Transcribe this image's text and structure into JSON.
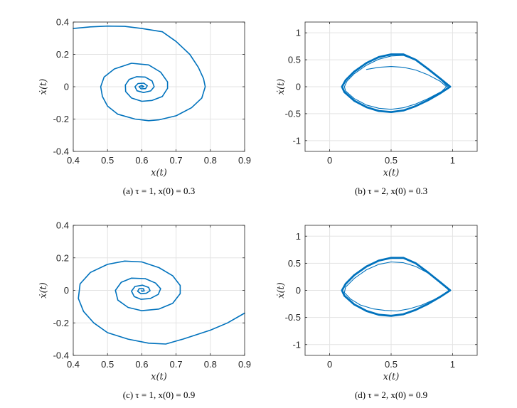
{
  "chart_data": [
    {
      "type": "line",
      "panel": "a",
      "caption": "(a)  τ = 1, x(0) = 0.3",
      "xlabel": "x(t)",
      "ylabel": "ẋ(t)",
      "xlim": [
        0.4,
        0.9
      ],
      "ylim": [
        -0.4,
        0.4
      ],
      "xticks": [
        0.4,
        0.5,
        0.6,
        0.7,
        0.8,
        0.9
      ],
      "xtick_labels": [
        "0.4",
        "0.5",
        "0.6",
        "0.7",
        "0.8",
        "0.9"
      ],
      "yticks": [
        -0.4,
        -0.2,
        0,
        0.2,
        0.4
      ],
      "ytick_labels": [
        "-0.4",
        "-0.2",
        "0",
        "0.2",
        "0.4"
      ],
      "grid": true,
      "color": "#0072BD",
      "series": [
        {
          "name": "trajectory",
          "width": 1.6,
          "points": [
            [
              0.4,
              0.36
            ],
            [
              0.45,
              0.37
            ],
            [
              0.5,
              0.375
            ],
            [
              0.55,
              0.373
            ],
            [
              0.6,
              0.36
            ],
            [
              0.66,
              0.34
            ],
            [
              0.7,
              0.28
            ],
            [
              0.74,
              0.2
            ],
            [
              0.765,
              0.12
            ],
            [
              0.78,
              0.05
            ],
            [
              0.785,
              0
            ],
            [
              0.775,
              -0.07
            ],
            [
              0.745,
              -0.13
            ],
            [
              0.7,
              -0.18
            ],
            [
              0.65,
              -0.205
            ],
            [
              0.62,
              -0.21
            ],
            [
              0.58,
              -0.2
            ],
            [
              0.53,
              -0.17
            ],
            [
              0.5,
              -0.12
            ],
            [
              0.485,
              -0.06
            ],
            [
              0.48,
              0
            ],
            [
              0.49,
              0.06
            ],
            [
              0.52,
              0.11
            ],
            [
              0.57,
              0.145
            ],
            [
              0.62,
              0.135
            ],
            [
              0.655,
              0.09
            ],
            [
              0.675,
              0.03
            ],
            [
              0.675,
              -0.01
            ],
            [
              0.66,
              -0.06
            ],
            [
              0.63,
              -0.085
            ],
            [
              0.6,
              -0.09
            ],
            [
              0.57,
              -0.07
            ],
            [
              0.553,
              -0.03
            ],
            [
              0.552,
              0.01
            ],
            [
              0.563,
              0.045
            ],
            [
              0.585,
              0.062
            ],
            [
              0.61,
              0.06
            ],
            [
              0.63,
              0.035
            ],
            [
              0.636,
              0
            ],
            [
              0.626,
              -0.026
            ],
            [
              0.605,
              -0.036
            ],
            [
              0.586,
              -0.025
            ],
            [
              0.58,
              0
            ],
            [
              0.589,
              0.02
            ],
            [
              0.606,
              0.022
            ],
            [
              0.616,
              0.006
            ],
            [
              0.611,
              -0.012
            ],
            [
              0.598,
              -0.013
            ],
            [
              0.592,
              0
            ],
            [
              0.6,
              0.008
            ],
            [
              0.606,
              0.001
            ],
            [
              0.6,
              -0.004
            ],
            [
              0.6,
              0
            ]
          ]
        }
      ]
    },
    {
      "type": "line",
      "panel": "b",
      "caption": "(b)  τ = 2, x(0) = 0.3",
      "xlabel": "x(t)",
      "ylabel": "ẋ(t)",
      "xlim": [
        -0.2,
        1.2
      ],
      "ylim": [
        -1.2,
        1.2
      ],
      "xticks": [
        0,
        0.5,
        1
      ],
      "xtick_labels": [
        "0",
        "0.5",
        "1"
      ],
      "yticks": [
        -1,
        -0.5,
        0,
        0.5,
        1
      ],
      "ytick_labels": [
        "-1",
        "-0.5",
        "0",
        "0.5",
        "1"
      ],
      "grid": true,
      "color": "#0072BD",
      "series": [
        {
          "name": "transient",
          "width": 1.1,
          "points": [
            [
              0.3,
              0.32
            ],
            [
              0.4,
              0.36
            ],
            [
              0.5,
              0.375
            ],
            [
              0.6,
              0.36
            ],
            [
              0.7,
              0.31
            ],
            [
              0.8,
              0.22
            ],
            [
              0.9,
              0.1
            ],
            [
              0.95,
              0.0
            ],
            [
              0.91,
              -0.09
            ],
            [
              0.8,
              -0.22
            ],
            [
              0.7,
              -0.32
            ],
            [
              0.6,
              -0.39
            ],
            [
              0.5,
              -0.42
            ],
            [
              0.4,
              -0.4
            ],
            [
              0.3,
              -0.34
            ],
            [
              0.2,
              -0.22
            ],
            [
              0.13,
              -0.08
            ],
            [
              0.12,
              0
            ],
            [
              0.14,
              0.1
            ],
            [
              0.2,
              0.24
            ],
            [
              0.3,
              0.4
            ],
            [
              0.4,
              0.51
            ],
            [
              0.5,
              0.57
            ],
            [
              0.6,
              0.58
            ],
            [
              0.7,
              0.49
            ],
            [
              0.8,
              0.32
            ],
            [
              0.9,
              0.14
            ],
            [
              0.96,
              0
            ]
          ]
        },
        {
          "name": "limit-cycle",
          "width": 2.8,
          "points": [
            [
              0.1,
              0
            ],
            [
              0.13,
              0.12
            ],
            [
              0.2,
              0.28
            ],
            [
              0.3,
              0.44
            ],
            [
              0.4,
              0.55
            ],
            [
              0.5,
              0.6
            ],
            [
              0.6,
              0.6
            ],
            [
              0.7,
              0.5
            ],
            [
              0.8,
              0.33
            ],
            [
              0.9,
              0.15
            ],
            [
              0.98,
              0
            ],
            [
              0.9,
              -0.12
            ],
            [
              0.8,
              -0.25
            ],
            [
              0.7,
              -0.36
            ],
            [
              0.6,
              -0.44
            ],
            [
              0.5,
              -0.47
            ],
            [
              0.4,
              -0.45
            ],
            [
              0.3,
              -0.38
            ],
            [
              0.2,
              -0.26
            ],
            [
              0.12,
              -0.1
            ],
            [
              0.1,
              0
            ]
          ]
        }
      ]
    },
    {
      "type": "line",
      "panel": "c",
      "caption": "(c)  τ = 1, x(0) = 0.9",
      "xlabel": "x(t)",
      "ylabel": "ẋ(t)",
      "xlim": [
        0.4,
        0.9
      ],
      "ylim": [
        -0.4,
        0.4
      ],
      "xticks": [
        0.4,
        0.5,
        0.6,
        0.7,
        0.8,
        0.9
      ],
      "xtick_labels": [
        "0.4",
        "0.5",
        "0.6",
        "0.7",
        "0.8",
        "0.9"
      ],
      "yticks": [
        -0.4,
        -0.2,
        0,
        0.2,
        0.4
      ],
      "ytick_labels": [
        "-0.4",
        "-0.2",
        "0",
        "0.2",
        "0.4"
      ],
      "grid": true,
      "color": "#0072BD",
      "series": [
        {
          "name": "trajectory",
          "width": 1.6,
          "points": [
            [
              0.9,
              -0.14
            ],
            [
              0.85,
              -0.2
            ],
            [
              0.8,
              -0.245
            ],
            [
              0.72,
              -0.3
            ],
            [
              0.67,
              -0.33
            ],
            [
              0.62,
              -0.325
            ],
            [
              0.56,
              -0.3
            ],
            [
              0.5,
              -0.26
            ],
            [
              0.46,
              -0.2
            ],
            [
              0.43,
              -0.13
            ],
            [
              0.415,
              -0.05
            ],
            [
              0.42,
              0.04
            ],
            [
              0.45,
              0.11
            ],
            [
              0.5,
              0.16
            ],
            [
              0.55,
              0.18
            ],
            [
              0.6,
              0.175
            ],
            [
              0.65,
              0.14
            ],
            [
              0.69,
              0.09
            ],
            [
              0.712,
              0.03
            ],
            [
              0.712,
              -0.02
            ],
            [
              0.69,
              -0.08
            ],
            [
              0.65,
              -0.115
            ],
            [
              0.6,
              -0.125
            ],
            [
              0.56,
              -0.105
            ],
            [
              0.53,
              -0.06
            ],
            [
              0.523,
              0
            ],
            [
              0.54,
              0.05
            ],
            [
              0.57,
              0.075
            ],
            [
              0.61,
              0.072
            ],
            [
              0.64,
              0.045
            ],
            [
              0.655,
              0.01
            ],
            [
              0.648,
              -0.025
            ],
            [
              0.625,
              -0.05
            ],
            [
              0.598,
              -0.055
            ],
            [
              0.578,
              -0.038
            ],
            [
              0.57,
              -0.005
            ],
            [
              0.58,
              0.024
            ],
            [
              0.602,
              0.032
            ],
            [
              0.62,
              0.018
            ],
            [
              0.624,
              -0.002
            ],
            [
              0.613,
              -0.018
            ],
            [
              0.597,
              -0.02
            ],
            [
              0.588,
              -0.006
            ],
            [
              0.592,
              0.01
            ],
            [
              0.605,
              0.01
            ],
            [
              0.607,
              -0.003
            ],
            [
              0.6,
              -0.006
            ],
            [
              0.6,
              0
            ]
          ]
        }
      ]
    },
    {
      "type": "line",
      "panel": "d",
      "caption": "(d)  τ = 2, x(0) = 0.9",
      "xlabel": "x(t)",
      "ylabel": "ẋ(t)",
      "xlim": [
        -0.2,
        1.2
      ],
      "ylim": [
        -1.2,
        1.2
      ],
      "xticks": [
        0,
        0.5,
        1
      ],
      "xtick_labels": [
        "0",
        "0.5",
        "1"
      ],
      "yticks": [
        -1,
        -0.5,
        0,
        0.5,
        1
      ],
      "ytick_labels": [
        "-1",
        "-0.5",
        "0",
        "0.5",
        "1"
      ],
      "grid": true,
      "color": "#0072BD",
      "series": [
        {
          "name": "transient",
          "width": 1.1,
          "points": [
            [
              0.97,
              0
            ],
            [
              0.9,
              0.16
            ],
            [
              0.8,
              0.32
            ],
            [
              0.7,
              0.44
            ],
            [
              0.6,
              0.51
            ],
            [
              0.5,
              0.525
            ],
            [
              0.4,
              0.48
            ],
            [
              0.3,
              0.38
            ],
            [
              0.2,
              0.22
            ],
            [
              0.13,
              0.06
            ],
            [
              0.12,
              -0.04
            ],
            [
              0.17,
              -0.16
            ],
            [
              0.25,
              -0.27
            ],
            [
              0.35,
              -0.34
            ],
            [
              0.45,
              -0.37
            ],
            [
              0.55,
              -0.38
            ],
            [
              0.65,
              -0.34
            ],
            [
              0.75,
              -0.27
            ],
            [
              0.85,
              -0.17
            ],
            [
              0.93,
              -0.07
            ],
            [
              0.97,
              0
            ]
          ]
        },
        {
          "name": "limit-cycle",
          "width": 2.8,
          "points": [
            [
              0.1,
              0
            ],
            [
              0.13,
              0.12
            ],
            [
              0.2,
              0.28
            ],
            [
              0.3,
              0.44
            ],
            [
              0.4,
              0.55
            ],
            [
              0.5,
              0.6
            ],
            [
              0.6,
              0.6
            ],
            [
              0.7,
              0.5
            ],
            [
              0.8,
              0.33
            ],
            [
              0.9,
              0.15
            ],
            [
              0.98,
              0
            ],
            [
              0.9,
              -0.12
            ],
            [
              0.8,
              -0.25
            ],
            [
              0.7,
              -0.36
            ],
            [
              0.6,
              -0.44
            ],
            [
              0.5,
              -0.47
            ],
            [
              0.4,
              -0.45
            ],
            [
              0.3,
              -0.38
            ],
            [
              0.2,
              -0.26
            ],
            [
              0.12,
              -0.1
            ],
            [
              0.1,
              0
            ]
          ]
        }
      ]
    }
  ]
}
